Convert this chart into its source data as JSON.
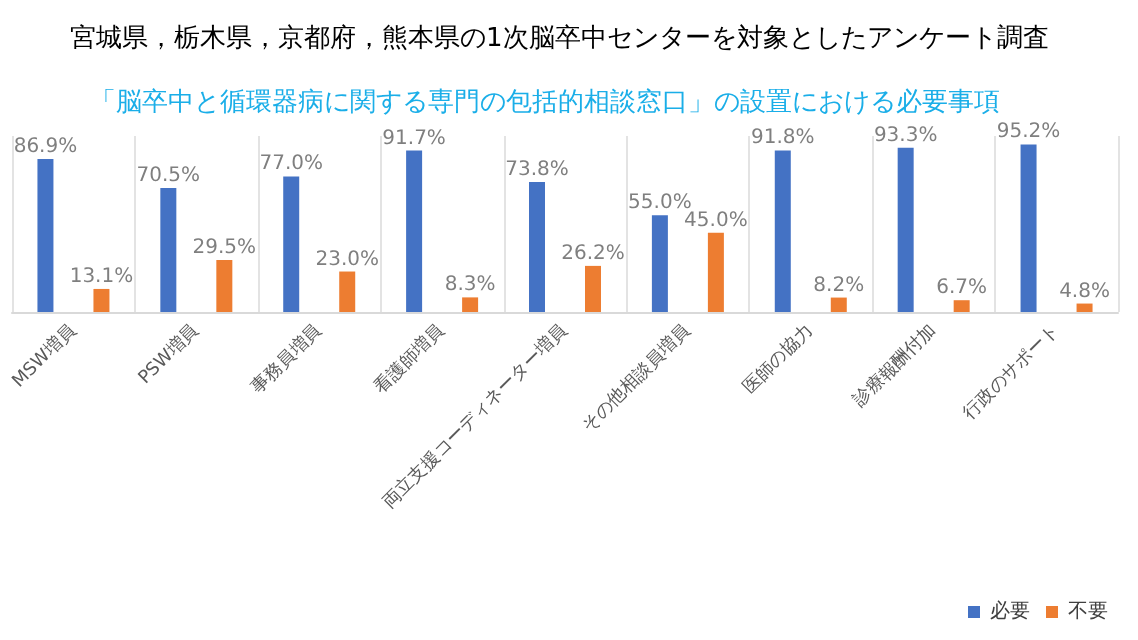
{
  "chart_data": {
    "type": "bar",
    "title": "宮城県，栃木県，京都府，熊本県の1次脳卒中センターを対象としたアンケート調査",
    "subtitle": "「脳卒中と循環器病に関する専門の包括的相談窓口」の設置における必要事項",
    "categories": [
      "MSW増員",
      "PSW増員",
      "事務員増員",
      "看護師増員",
      "両立支援コーディネーター増員",
      "その他相談員増員",
      "医師の協力",
      "診療報酬付加",
      "行政のサポート"
    ],
    "series": [
      {
        "name": "必要",
        "color": "#4472c4",
        "values": [
          86.9,
          70.5,
          77.0,
          91.7,
          73.8,
          55.0,
          91.8,
          93.3,
          95.2
        ],
        "value_labels": [
          "86.9%",
          "70.5%",
          "77.0%",
          "91.7%",
          "73.8%",
          "55.0%",
          "91.8%",
          "93.3%",
          "95.2%"
        ]
      },
      {
        "name": "不要",
        "color": "#ed7d31",
        "values": [
          13.1,
          29.5,
          23.0,
          8.3,
          26.2,
          45.0,
          8.2,
          6.7,
          4.8
        ],
        "value_labels": [
          "13.1%",
          "29.5%",
          "23.0%",
          "8.3%",
          "26.2%",
          "45.0%",
          "8.2%",
          "6.7%",
          "4.8%"
        ]
      }
    ],
    "grid": "x",
    "legend": "bottom right"
  }
}
